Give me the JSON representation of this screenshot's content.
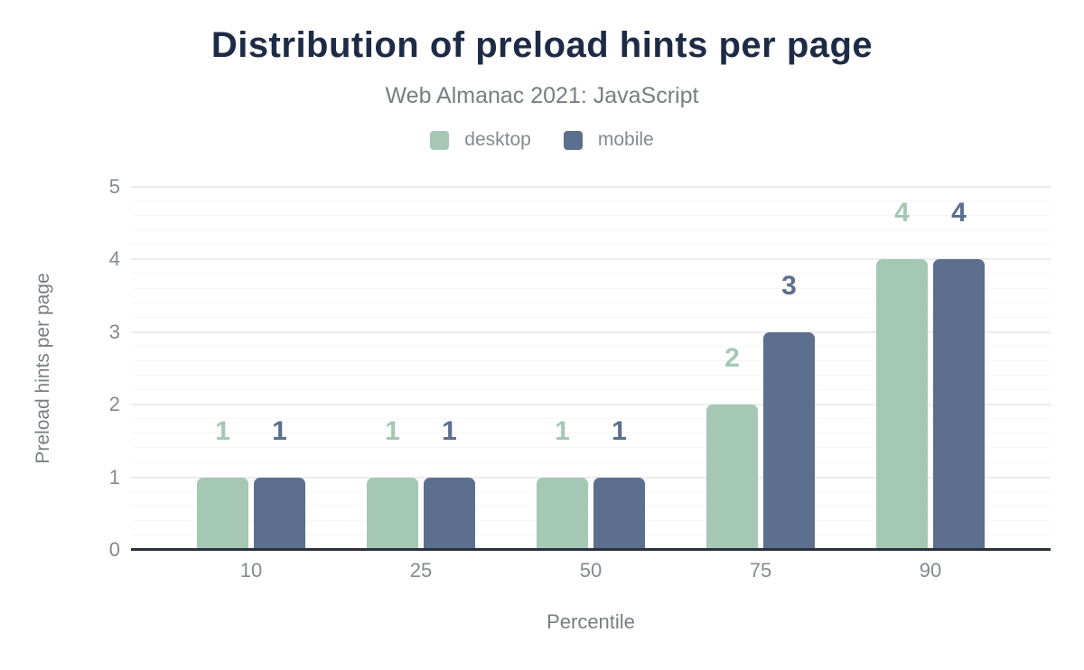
{
  "title": "Distribution of preload hints per page",
  "subtitle": "Web Almanac 2021: JavaScript",
  "chart_data": {
    "type": "bar",
    "title": "Distribution of preload hints per page",
    "subtitle": "Web Almanac 2021: JavaScript",
    "categories": [
      "10",
      "25",
      "50",
      "75",
      "90"
    ],
    "series": [
      {
        "name": "desktop",
        "color": "#a5c8b4",
        "values": [
          1,
          1,
          1,
          2,
          4
        ]
      },
      {
        "name": "mobile",
        "color": "#5c6f8e",
        "values": [
          1,
          1,
          1,
          3,
          4
        ]
      }
    ],
    "xlabel": "Percentile",
    "ylabel": "Preload hints per page",
    "ylim": [
      0,
      5
    ],
    "yticks": [
      0,
      1,
      2,
      3,
      4,
      5
    ],
    "minor_grid_step": 0.2,
    "grid": "on",
    "legend_position": "top",
    "value_labels": "above-bars"
  },
  "colors": {
    "title": "#1e2b47",
    "subtitle": "#7a7d82",
    "tick": "#85898f",
    "axis_line": "#2b313d",
    "grid_major": "#ececec",
    "grid_minor": "#f7f7f7",
    "background": "#ffffff"
  }
}
